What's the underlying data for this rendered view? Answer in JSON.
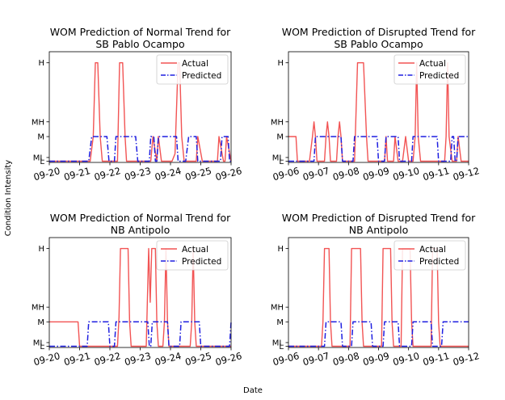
{
  "figure": {
    "ylabel": "Condition Intensity",
    "xlabel": "Date"
  },
  "colors": {
    "actual": "#f25454",
    "predicted": "#1f1fe0"
  },
  "chart_data": [
    {
      "type": "line",
      "title_lines": [
        "WOM Prediction of Normal Trend for",
        "SB Pablo Ocampo"
      ],
      "x_ticks": [
        "09-20",
        "09-21",
        "09-22",
        "09-23",
        "09-24",
        "09-25",
        "09-26"
      ],
      "xlim": [
        0,
        6
      ],
      "y_ticks": [
        {
          "label": "L",
          "value": 0
        },
        {
          "label": "ML",
          "value": 0.15
        },
        {
          "label": "M",
          "value": 1
        },
        {
          "label": "MH",
          "value": 1.6
        },
        {
          "label": "H",
          "value": 4
        }
      ],
      "ylim": [
        -0.05,
        4.45
      ],
      "legend": "top-right",
      "series": [
        {
          "name": "Actual",
          "points": [
            [
              0,
              0
            ],
            [
              1.35,
              0
            ],
            [
              1.45,
              1
            ],
            [
              1.52,
              4
            ],
            [
              1.6,
              4
            ],
            [
              1.68,
              1
            ],
            [
              1.75,
              0
            ],
            [
              2.25,
              0
            ],
            [
              2.32,
              4
            ],
            [
              2.42,
              4
            ],
            [
              2.5,
              1
            ],
            [
              2.55,
              0
            ],
            [
              3.35,
              0
            ],
            [
              3.42,
              1
            ],
            [
              3.55,
              0
            ],
            [
              3.6,
              1
            ],
            [
              3.7,
              0
            ],
            [
              4.05,
              0
            ],
            [
              4.15,
              0.3
            ],
            [
              4.25,
              4
            ],
            [
              4.3,
              4
            ],
            [
              4.37,
              1
            ],
            [
              4.45,
              0
            ],
            [
              4.85,
              0
            ],
            [
              4.9,
              1
            ],
            [
              5.05,
              0
            ],
            [
              5.55,
              0
            ],
            [
              5.6,
              1
            ],
            [
              5.75,
              0
            ],
            [
              5.8,
              0
            ],
            [
              5.85,
              1
            ],
            [
              6,
              0
            ]
          ]
        },
        {
          "name": "Predicted",
          "points": [
            [
              0,
              0
            ],
            [
              1.3,
              0
            ],
            [
              1.4,
              1
            ],
            [
              1.9,
              1
            ],
            [
              1.97,
              0
            ],
            [
              2.15,
              0
            ],
            [
              2.2,
              1
            ],
            [
              2.85,
              1
            ],
            [
              2.92,
              0
            ],
            [
              3.3,
              0
            ],
            [
              3.35,
              1
            ],
            [
              3.45,
              1
            ],
            [
              3.5,
              0
            ],
            [
              3.55,
              0
            ],
            [
              3.6,
              1
            ],
            [
              4.2,
              1
            ],
            [
              4.25,
              0
            ],
            [
              4.5,
              0
            ],
            [
              4.6,
              1
            ],
            [
              4.85,
              1
            ],
            [
              4.9,
              0
            ],
            [
              5.65,
              0
            ],
            [
              5.7,
              1
            ],
            [
              5.9,
              1
            ],
            [
              5.95,
              0
            ],
            [
              6,
              0
            ]
          ]
        }
      ]
    },
    {
      "type": "line",
      "title_lines": [
        "WOM Prediction of Disrupted Trend for",
        "SB Pablo Ocampo"
      ],
      "x_ticks": [
        "09-06",
        "09-07",
        "09-08",
        "09-09",
        "09-10",
        "09-11",
        "09-12"
      ],
      "xlim": [
        0,
        6
      ],
      "y_ticks": [
        {
          "label": "L",
          "value": 0
        },
        {
          "label": "ML",
          "value": 0.15
        },
        {
          "label": "M",
          "value": 1
        },
        {
          "label": "MH",
          "value": 1.6
        },
        {
          "label": "H",
          "value": 4
        }
      ],
      "ylim": [
        -0.05,
        4.45
      ],
      "legend": "top-right",
      "series": [
        {
          "name": "Actual",
          "points": [
            [
              0,
              1
            ],
            [
              0.25,
              1
            ],
            [
              0.3,
              0
            ],
            [
              0.7,
              0
            ],
            [
              0.8,
              1
            ],
            [
              0.85,
              1.6
            ],
            [
              0.9,
              1
            ],
            [
              0.95,
              0
            ],
            [
              1.2,
              0
            ],
            [
              1.25,
              1
            ],
            [
              1.3,
              1.6
            ],
            [
              1.35,
              1
            ],
            [
              1.4,
              0
            ],
            [
              1.6,
              0
            ],
            [
              1.65,
              1
            ],
            [
              1.7,
              1.6
            ],
            [
              1.75,
              1
            ],
            [
              1.8,
              0
            ],
            [
              2.2,
              0
            ],
            [
              2.3,
              4
            ],
            [
              2.5,
              4
            ],
            [
              2.6,
              1
            ],
            [
              2.65,
              0
            ],
            [
              3.2,
              0
            ],
            [
              3.25,
              1
            ],
            [
              3.3,
              0
            ],
            [
              3.5,
              0
            ],
            [
              3.55,
              1
            ],
            [
              3.65,
              0
            ],
            [
              3.8,
              0
            ],
            [
              3.9,
              1
            ],
            [
              4.0,
              0
            ],
            [
              4.15,
              0
            ],
            [
              4.22,
              1
            ],
            [
              4.27,
              4
            ],
            [
              4.32,
              1
            ],
            [
              4.4,
              0
            ],
            [
              5.2,
              0
            ],
            [
              5.25,
              1
            ],
            [
              5.3,
              4
            ],
            [
              5.35,
              1
            ],
            [
              5.45,
              0
            ],
            [
              5.6,
              0
            ],
            [
              5.65,
              1
            ],
            [
              5.75,
              0
            ],
            [
              6,
              0
            ]
          ]
        },
        {
          "name": "Predicted",
          "points": [
            [
              0,
              0
            ],
            [
              0.85,
              0
            ],
            [
              0.9,
              1
            ],
            [
              1.75,
              1
            ],
            [
              1.8,
              0
            ],
            [
              2.15,
              0
            ],
            [
              2.2,
              1
            ],
            [
              2.95,
              1
            ],
            [
              3.0,
              0
            ],
            [
              3.2,
              0
            ],
            [
              3.25,
              1
            ],
            [
              3.65,
              1
            ],
            [
              3.7,
              0
            ],
            [
              4.1,
              0
            ],
            [
              4.15,
              1
            ],
            [
              4.95,
              1
            ],
            [
              5.0,
              0
            ],
            [
              5.4,
              0
            ],
            [
              5.45,
              1
            ],
            [
              5.5,
              1
            ],
            [
              5.55,
              0
            ],
            [
              5.6,
              0
            ],
            [
              5.65,
              1
            ],
            [
              6,
              1
            ]
          ]
        }
      ]
    },
    {
      "type": "line",
      "title_lines": [
        "WOM Prediction of Normal Trend for",
        "NB Antipolo"
      ],
      "x_ticks": [
        "09-20",
        "09-21",
        "09-22",
        "09-23",
        "09-24",
        "09-25",
        "09-26"
      ],
      "xlim": [
        0,
        6
      ],
      "y_ticks": [
        {
          "label": "L",
          "value": 0
        },
        {
          "label": "ML",
          "value": 0.15
        },
        {
          "label": "M",
          "value": 1
        },
        {
          "label": "MH",
          "value": 1.6
        },
        {
          "label": "H",
          "value": 4
        }
      ],
      "ylim": [
        -0.05,
        4.45
      ],
      "legend": "top-right",
      "series": [
        {
          "name": "Actual",
          "points": [
            [
              0,
              1
            ],
            [
              0.95,
              1
            ],
            [
              1.0,
              0
            ],
            [
              2.25,
              0
            ],
            [
              2.3,
              1.2
            ],
            [
              2.35,
              4
            ],
            [
              2.6,
              4
            ],
            [
              2.65,
              1
            ],
            [
              2.7,
              0
            ],
            [
              3.2,
              0
            ],
            [
              3.28,
              4
            ],
            [
              3.33,
              1.8
            ],
            [
              3.38,
              4
            ],
            [
              3.5,
              4
            ],
            [
              3.55,
              1
            ],
            [
              3.6,
              0
            ],
            [
              3.75,
              0
            ],
            [
              3.8,
              1
            ],
            [
              3.85,
              4
            ],
            [
              3.9,
              1
            ],
            [
              3.95,
              0
            ],
            [
              4.65,
              0
            ],
            [
              4.7,
              1
            ],
            [
              4.75,
              4
            ],
            [
              4.8,
              1
            ],
            [
              4.85,
              0
            ],
            [
              6,
              0
            ]
          ]
        },
        {
          "name": "Predicted",
          "points": [
            [
              0,
              0
            ],
            [
              1.25,
              0
            ],
            [
              1.3,
              1
            ],
            [
              1.95,
              1
            ],
            [
              2.0,
              0
            ],
            [
              2.15,
              0
            ],
            [
              2.2,
              1
            ],
            [
              3.25,
              1
            ],
            [
              3.3,
              0
            ],
            [
              3.35,
              0
            ],
            [
              3.4,
              1
            ],
            [
              3.9,
              1
            ],
            [
              3.95,
              0
            ],
            [
              4.3,
              0
            ],
            [
              4.35,
              1
            ],
            [
              4.95,
              1
            ],
            [
              5.0,
              0
            ],
            [
              5.95,
              0
            ],
            [
              6,
              1
            ]
          ]
        }
      ]
    },
    {
      "type": "line",
      "title_lines": [
        "WOM Prediction of Disrupted Trend for",
        "NB Antipolo"
      ],
      "x_ticks": [
        "09-06",
        "09-07",
        "09-08",
        "09-09",
        "09-10",
        "09-11",
        "09-12"
      ],
      "xlim": [
        0,
        6
      ],
      "y_ticks": [
        {
          "label": "L",
          "value": 0
        },
        {
          "label": "ML",
          "value": 0.15
        },
        {
          "label": "M",
          "value": 1
        },
        {
          "label": "MH",
          "value": 1.6
        },
        {
          "label": "H",
          "value": 4
        }
      ],
      "ylim": [
        -0.05,
        4.45
      ],
      "legend": "top-right",
      "series": [
        {
          "name": "Actual",
          "points": [
            [
              0,
              0
            ],
            [
              1.1,
              0
            ],
            [
              1.15,
              1
            ],
            [
              1.2,
              4
            ],
            [
              1.35,
              4
            ],
            [
              1.4,
              1
            ],
            [
              1.45,
              0
            ],
            [
              2.05,
              0
            ],
            [
              2.1,
              4
            ],
            [
              2.4,
              4
            ],
            [
              2.45,
              1
            ],
            [
              2.5,
              0
            ],
            [
              3.1,
              0
            ],
            [
              3.15,
              4
            ],
            [
              3.4,
              4
            ],
            [
              3.45,
              1
            ],
            [
              3.5,
              0
            ],
            [
              3.75,
              0
            ],
            [
              3.8,
              4
            ],
            [
              4.05,
              4
            ],
            [
              4.1,
              1
            ],
            [
              4.15,
              0
            ],
            [
              4.75,
              0
            ],
            [
              4.8,
              4
            ],
            [
              4.95,
              4
            ],
            [
              5.0,
              1
            ],
            [
              5.05,
              0
            ],
            [
              6,
              0
            ]
          ]
        },
        {
          "name": "Predicted",
          "points": [
            [
              0,
              0
            ],
            [
              1.2,
              0
            ],
            [
              1.25,
              1
            ],
            [
              1.75,
              1
            ],
            [
              1.8,
              0
            ],
            [
              2.1,
              0
            ],
            [
              2.15,
              1
            ],
            [
              2.75,
              1
            ],
            [
              2.8,
              0
            ],
            [
              3.15,
              0
            ],
            [
              3.2,
              1
            ],
            [
              3.65,
              1
            ],
            [
              3.7,
              0
            ],
            [
              4.1,
              0
            ],
            [
              4.15,
              1
            ],
            [
              4.75,
              1
            ],
            [
              4.8,
              0
            ],
            [
              5.1,
              0
            ],
            [
              5.15,
              1
            ],
            [
              6,
              1
            ]
          ]
        }
      ]
    }
  ]
}
